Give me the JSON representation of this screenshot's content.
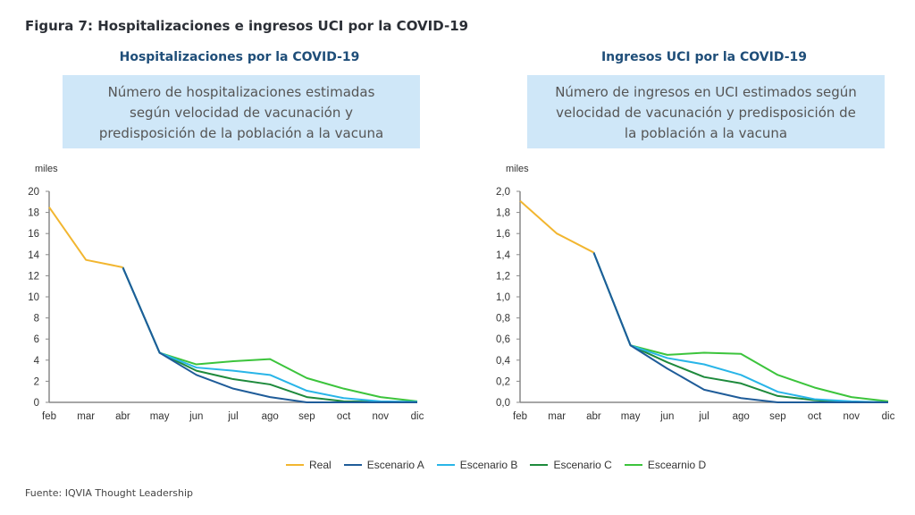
{
  "figure_title": "Figura 7: Hospitalizaciones e ingresos UCI por la COVID-19",
  "source": "Fuente: IQVIA Thought Leadership",
  "legend": [
    {
      "name": "Real",
      "color": "#f2b630"
    },
    {
      "name": "Escenario A",
      "color": "#1f5c99"
    },
    {
      "name": "Escenario B",
      "color": "#29b5e8"
    },
    {
      "name": "Escenario C",
      "color": "#1e8a3c"
    },
    {
      "name": "Escearnio D",
      "color": "#3cc43c"
    }
  ],
  "chart_data": [
    {
      "type": "line",
      "title": "Hospitalizaciones por la COVID-19",
      "subtitle": "Número de hospitalizaciones estimadas según velocidad de vacunación y predisposición de la población a la vacuna",
      "ylabel": "miles",
      "ylim": [
        0,
        20
      ],
      "yticks": [
        "0",
        "2",
        "4",
        "6",
        "8",
        "10",
        "12",
        "14",
        "16",
        "18",
        "20"
      ],
      "categories": [
        "feb",
        "mar",
        "abr",
        "may",
        "jun",
        "jul",
        "ago",
        "sep",
        "oct",
        "nov",
        "dic"
      ],
      "series": [
        {
          "name": "Real",
          "values": [
            18.5,
            13.5,
            12.8,
            null,
            null,
            null,
            null,
            null,
            null,
            null,
            null
          ]
        },
        {
          "name": "Escenario A",
          "values": [
            null,
            null,
            12.8,
            4.7,
            2.6,
            1.3,
            0.5,
            0,
            0,
            0,
            0
          ]
        },
        {
          "name": "Escenario B",
          "values": [
            null,
            null,
            12.8,
            4.7,
            3.3,
            3.0,
            2.6,
            1.1,
            0.4,
            0.1,
            0.05
          ]
        },
        {
          "name": "Escenario C",
          "values": [
            null,
            null,
            12.8,
            4.7,
            3.0,
            2.2,
            1.7,
            0.5,
            0.1,
            0.05,
            0
          ]
        },
        {
          "name": "Escearnio D",
          "values": [
            null,
            null,
            12.8,
            4.7,
            3.6,
            3.9,
            4.1,
            2.3,
            1.3,
            0.5,
            0.1
          ]
        }
      ]
    },
    {
      "type": "line",
      "title": "Ingresos UCI por la COVID-19",
      "subtitle": "Número de ingresos en UCI estimados según velocidad de vacunación y predisposición de la población a la vacuna",
      "ylabel": "miles",
      "ylim": [
        0,
        2
      ],
      "yticks": [
        "0,0",
        "0,2",
        "0,4",
        "0,6",
        "0,8",
        "1,0",
        "1,2",
        "1,4",
        "1,6",
        "1,8",
        "2,0"
      ],
      "categories": [
        "feb",
        "mar",
        "abr",
        "may",
        "jun",
        "jul",
        "ago",
        "sep",
        "oct",
        "nov",
        "dic"
      ],
      "series": [
        {
          "name": "Real",
          "values": [
            1.91,
            1.6,
            1.42,
            null,
            null,
            null,
            null,
            null,
            null,
            null,
            null
          ]
        },
        {
          "name": "Escenario A",
          "values": [
            null,
            null,
            1.42,
            0.54,
            0.32,
            0.12,
            0.04,
            0,
            0,
            0,
            0
          ]
        },
        {
          "name": "Escenario B",
          "values": [
            null,
            null,
            1.42,
            0.54,
            0.42,
            0.36,
            0.26,
            0.1,
            0.03,
            0.01,
            0
          ]
        },
        {
          "name": "Escenario C",
          "values": [
            null,
            null,
            1.42,
            0.54,
            0.38,
            0.24,
            0.18,
            0.06,
            0.02,
            0,
            0
          ]
        },
        {
          "name": "Escearnio D",
          "values": [
            null,
            null,
            1.42,
            0.54,
            0.45,
            0.47,
            0.46,
            0.26,
            0.14,
            0.05,
            0.01
          ]
        }
      ]
    }
  ]
}
